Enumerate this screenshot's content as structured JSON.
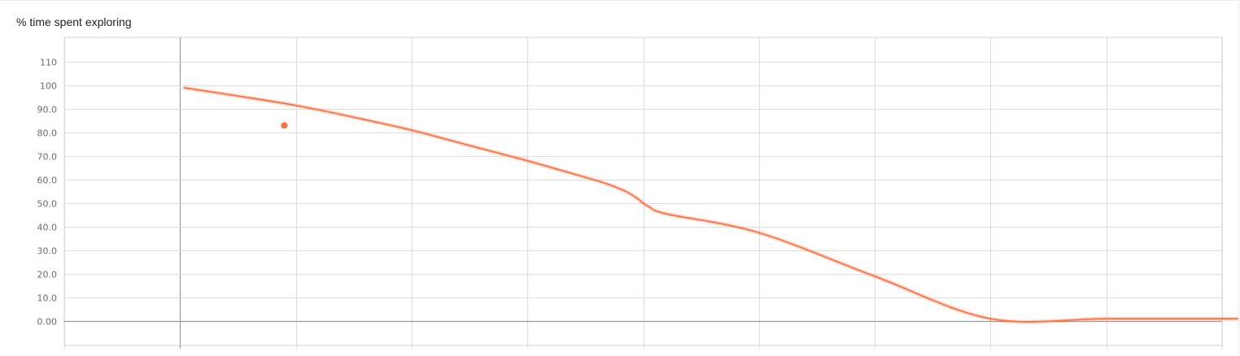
{
  "chart_title": "% time spent exploring",
  "chart_data": {
    "type": "line",
    "title": "% time spent exploring",
    "xlabel": "",
    "ylabel": "",
    "ylim": [
      -10,
      120
    ],
    "y_ticks": [
      "0.00",
      "10.0",
      "20.0",
      "30.0",
      "40.0",
      "50.0",
      "60.0",
      "70.0",
      "80.0",
      "90.0",
      "100",
      "110"
    ],
    "y_tick_values": [
      0,
      10,
      20,
      30,
      40,
      50,
      60,
      70,
      80,
      90,
      100,
      110
    ],
    "grid": true,
    "legend": "none",
    "series": [
      {
        "color": "#ff7043",
        "x": [
          1.03,
          1.5,
          2.0,
          2.5,
          3.0,
          3.5,
          4.0,
          4.5,
          4.7,
          4.85,
          4.95,
          5.0,
          5.05,
          5.2,
          6,
          7,
          8,
          9,
          10,
          11,
          12,
          13.6
        ],
        "y": [
          99,
          95.5,
          91.5,
          86.5,
          81,
          74.5,
          68,
          61,
          58,
          55,
          52,
          50,
          48.5,
          45.5,
          37.5,
          19,
          1,
          1,
          1,
          1,
          1,
          1
        ]
      }
    ],
    "highlight_point": {
      "x": 1.9,
      "y": 83
    }
  }
}
